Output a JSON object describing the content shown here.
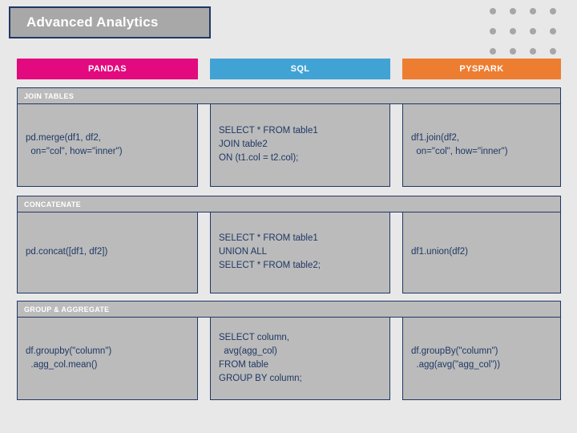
{
  "page": {
    "title": "Advanced Analytics"
  },
  "colors": {
    "background": "#e8e8e8",
    "border_navy": "#1f3864",
    "code_text": "#1f3864",
    "box_gray": "#bbbbbb",
    "pandas_pink": "#e20a7e",
    "sql_blue": "#41a3d4",
    "pyspark_orange": "#ed7d31"
  },
  "columns": [
    {
      "id": "pandas",
      "label": "PANDAS",
      "color": "#e20a7e"
    },
    {
      "id": "sql",
      "label": "SQL",
      "color": "#41a3d4"
    },
    {
      "id": "pyspark",
      "label": "PYSPARK",
      "color": "#ed7d31"
    }
  ],
  "sections": [
    {
      "label": "JOIN TABLES",
      "cells": {
        "pandas": "pd.merge(df1, df2,\n  on=\"col\", how=\"inner\")",
        "sql": "SELECT * FROM table1\nJOIN table2\nON (t1.col = t2.col);",
        "pyspark": "df1.join(df2,\n  on=\"col\", how=\"inner\")"
      }
    },
    {
      "label": "CONCATENATE",
      "cells": {
        "pandas": "pd.concat([df1, df2])",
        "sql": "SELECT * FROM table1\nUNION ALL\nSELECT * FROM table2;",
        "pyspark": "df1.union(df2)"
      }
    },
    {
      "label": "GROUP & AGGREGATE",
      "cells": {
        "pandas": "df.groupby(\"column\")\n  .agg_col.mean()",
        "sql": "SELECT column,\n  avg(agg_col)\nFROM table\nGROUP BY column;",
        "pyspark": "df.groupBy(\"column\")\n  .agg(avg(\"agg_col\"))"
      }
    }
  ]
}
